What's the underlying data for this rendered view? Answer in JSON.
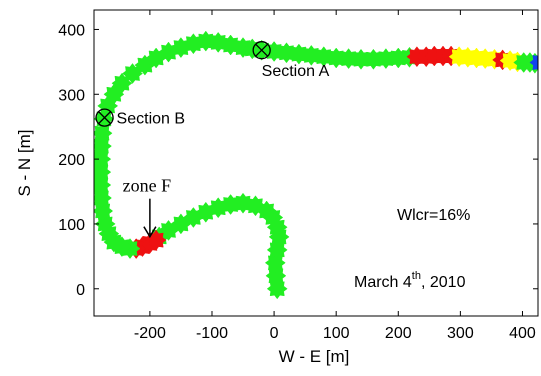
{
  "chart_data": {
    "type": "scatter",
    "xlabel": "W - E [m]",
    "ylabel": "S - N [m]",
    "xlim": [
      -290,
      425
    ],
    "ylim": [
      -42,
      430
    ],
    "xticks": [
      -200,
      -100,
      0,
      100,
      200,
      300,
      400
    ],
    "yticks": [
      0,
      100,
      200,
      300,
      400
    ],
    "xtick_labels": [
      "-200",
      "-100",
      "0",
      "100",
      "200",
      "300",
      "400"
    ],
    "ytick_labels": [
      "0",
      "100",
      "200",
      "300",
      "400"
    ],
    "grid": false,
    "legend": "none",
    "colors": {
      "green": "#22ee22",
      "red": "#ee1111",
      "yellow": "#ffff00",
      "blue": "#1144ee"
    },
    "track": [
      {
        "color": "green",
        "points": [
          [
            5,
            0
          ],
          [
            3,
            20
          ],
          [
            2,
            40
          ],
          [
            5,
            60
          ],
          [
            8,
            80
          ],
          [
            5,
            95
          ],
          [
            -2,
            110
          ],
          [
            -12,
            120
          ],
          [
            -30,
            128
          ],
          [
            -50,
            132
          ],
          [
            -70,
            130
          ],
          [
            -90,
            125
          ],
          [
            -110,
            118
          ],
          [
            -130,
            110
          ],
          [
            -150,
            100
          ],
          [
            -170,
            90
          ],
          [
            -185,
            80
          ]
        ]
      },
      {
        "color": "red",
        "points": [
          [
            -190,
            75
          ],
          [
            -200,
            70
          ],
          [
            -212,
            65
          ],
          [
            -222,
            62
          ]
        ]
      },
      {
        "color": "green",
        "points": [
          [
            -232,
            62
          ],
          [
            -245,
            65
          ],
          [
            -258,
            72
          ],
          [
            -266,
            85
          ],
          [
            -272,
            100
          ],
          [
            -276,
            120
          ],
          [
            -278,
            140
          ],
          [
            -279,
            160
          ],
          [
            -279,
            180
          ],
          [
            -279,
            200
          ],
          [
            -278,
            220
          ],
          [
            -277,
            240
          ],
          [
            -274,
            262
          ],
          [
            -268,
            282
          ],
          [
            -258,
            300
          ],
          [
            -245,
            317
          ],
          [
            -228,
            332
          ],
          [
            -208,
            345
          ],
          [
            -190,
            356
          ],
          [
            -170,
            365
          ],
          [
            -150,
            372
          ],
          [
            -130,
            378
          ],
          [
            -110,
            382
          ],
          [
            -90,
            380
          ],
          [
            -70,
            376
          ],
          [
            -50,
            372
          ],
          [
            -35,
            370
          ],
          [
            -20,
            368
          ],
          [
            0,
            366
          ],
          [
            20,
            364
          ],
          [
            40,
            362
          ],
          [
            60,
            360
          ],
          [
            80,
            358
          ],
          [
            100,
            356
          ],
          [
            120,
            355
          ],
          [
            140,
            354
          ],
          [
            160,
            354
          ],
          [
            180,
            355
          ],
          [
            200,
            356
          ],
          [
            218,
            357
          ]
        ]
      },
      {
        "color": "red",
        "points": [
          [
            230,
            358
          ],
          [
            245,
            358
          ],
          [
            258,
            359
          ],
          [
            272,
            359
          ],
          [
            285,
            359
          ]
        ]
      },
      {
        "color": "yellow",
        "points": [
          [
            298,
            358
          ],
          [
            312,
            357
          ],
          [
            326,
            356
          ],
          [
            340,
            355
          ],
          [
            355,
            354
          ]
        ]
      },
      {
        "color": "red",
        "points": [
          [
            368,
            353
          ]
        ]
      },
      {
        "color": "yellow",
        "points": [
          [
            380,
            352
          ],
          [
            392,
            350
          ]
        ]
      },
      {
        "color": "green",
        "points": [
          [
            402,
            349
          ],
          [
            412,
            349
          ],
          [
            420,
            348
          ]
        ]
      },
      {
        "color": "blue",
        "points": [
          [
            428,
            349
          ]
        ]
      }
    ],
    "sections": [
      {
        "label": "Section A",
        "x": -20,
        "y": 368
      },
      {
        "label": "Section B",
        "x": -273,
        "y": 264
      }
    ],
    "zone": {
      "label": "zone F",
      "x": -200,
      "y": 68
    },
    "annotations": {
      "wlcr": "Wlcr=16%",
      "date_month_day": "March 4",
      "date_sup": "th",
      "date_year": ", 2010"
    }
  }
}
